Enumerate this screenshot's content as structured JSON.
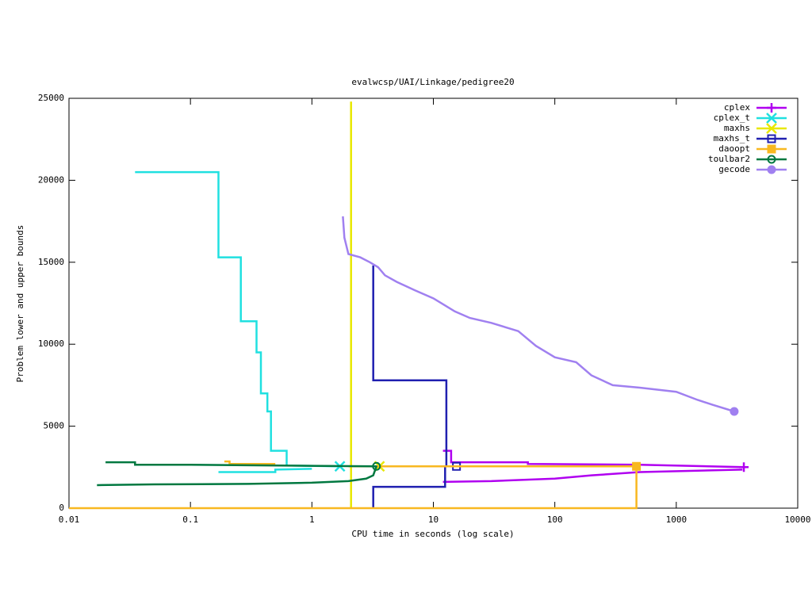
{
  "chart_data": {
    "type": "line",
    "title": "evalwcsp/UAI/Linkage/pedigree20",
    "x_label": "CPU time in seconds (log scale)",
    "y_label": "Problem lower and upper bounds",
    "xlog": true,
    "xlim": [
      0.01,
      10000
    ],
    "xticks": [
      0.01,
      0.1,
      1,
      10,
      100,
      1000,
      10000
    ],
    "ylim": [
      0,
      25000
    ],
    "yticks": [
      0,
      5000,
      10000,
      15000,
      20000,
      25000
    ],
    "legend": "top-right",
    "series": [
      {
        "name": "cplex",
        "color": "#b000f0",
        "marker": "plus",
        "x": [
          12,
          30,
          100,
          200,
          400,
          500,
          3500,
          null,
          12,
          14,
          14,
          60,
          60,
          500,
          3600
        ],
        "values": [
          1600,
          1650,
          1800,
          2000,
          2150,
          2200,
          2350,
          null,
          3500,
          3500,
          2800,
          2800,
          2700,
          2650,
          2500
        ]
      },
      {
        "name": "cplex_t",
        "color": "#20e0e0",
        "marker": "cross",
        "x": [
          0.17,
          0.5,
          0.5,
          1,
          null,
          0.035,
          0.17,
          0.17,
          0.26,
          0.26,
          0.35,
          0.35,
          0.38,
          0.38,
          0.43,
          0.43,
          0.46,
          0.46,
          0.62,
          0.62,
          1.7
        ],
        "values": [
          2200,
          2200,
          2350,
          2400,
          null,
          20500,
          20500,
          15300,
          15300,
          11400,
          11400,
          9500,
          9500,
          7000,
          7000,
          5900,
          5900,
          3500,
          3500,
          2600,
          2550
        ]
      },
      {
        "name": "maxhs",
        "color": "#e8e800",
        "marker": "cross",
        "x": [
          2.1,
          2.1,
          null,
          2.1,
          3.6
        ],
        "values": [
          0,
          24800,
          null,
          2550,
          2550
        ]
      },
      {
        "name": "maxhs_t",
        "color": "#2020b0",
        "marker": "square-open",
        "x": [
          3.2,
          3.2,
          12.5,
          12.5,
          null,
          3.2,
          3.2,
          12.8,
          12.8,
          15.5
        ],
        "values": [
          0,
          1300,
          1300,
          2550,
          null,
          14800,
          7800,
          7800,
          2550,
          2550
        ]
      },
      {
        "name": "daoopt",
        "color": "#f8b820",
        "marker": "square",
        "x": [
          0.19,
          0.21,
          0.21,
          0.5,
          null,
          0.01,
          470,
          470,
          null,
          2,
          470
        ],
        "values": [
          2850,
          2850,
          2700,
          2700,
          null,
          0,
          0,
          2550,
          null,
          2550,
          2550
        ]
      },
      {
        "name": "toulbar2",
        "color": "#007840",
        "marker": "circle-open",
        "x": [
          0.017,
          0.05,
          0.3,
          1,
          2,
          2.8,
          3.2,
          3.4,
          null,
          0.02,
          0.035,
          0.035,
          0.1,
          1,
          3.4
        ],
        "values": [
          1400,
          1450,
          1480,
          1550,
          1650,
          1800,
          2000,
          2550,
          null,
          2800,
          2800,
          2650,
          2650,
          2580,
          2550
        ]
      },
      {
        "name": "gecode",
        "color": "#a080f0",
        "marker": "circle",
        "x": [
          1.8,
          1.85,
          2,
          2.5,
          3,
          3.5,
          4,
          5,
          7,
          10,
          15,
          20,
          30,
          50,
          70,
          100,
          150,
          200,
          300,
          500,
          1000,
          1500,
          2000,
          3000
        ],
        "values": [
          17800,
          16500,
          15500,
          15300,
          15000,
          14700,
          14200,
          13800,
          13300,
          12800,
          12000,
          11600,
          11300,
          10800,
          9900,
          9200,
          8900,
          8100,
          7500,
          7350,
          7100,
          6600,
          6300,
          5900
        ]
      }
    ]
  }
}
